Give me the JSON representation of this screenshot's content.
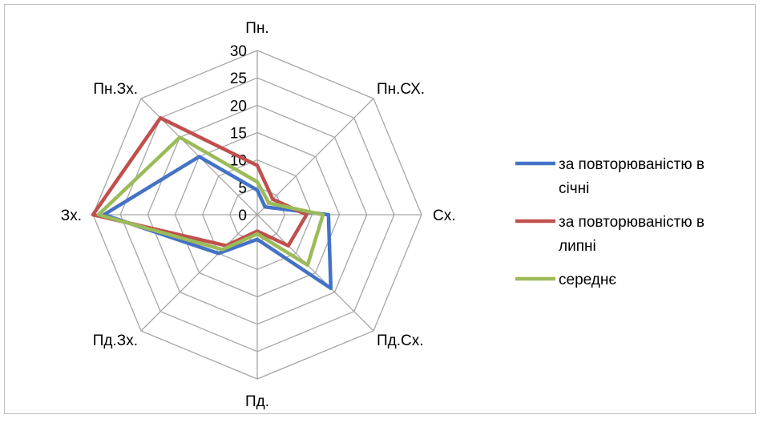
{
  "chart_data": {
    "type": "radar",
    "title": "",
    "categories": [
      "Пн.",
      "Пн.СХ.",
      "Сх.",
      "Пд.Сх.",
      "Пд.",
      "Пд.Зх.",
      "Зх.",
      "Пн.Зх."
    ],
    "r_ticks": [
      "0",
      "5",
      "10",
      "15",
      "20",
      "25",
      "30"
    ],
    "r_range": [
      0,
      30
    ],
    "grid": true,
    "legend_position": "right",
    "series": [
      {
        "name": "за повторюваністю в січні",
        "legend_lines": [
          "за повторюваністю в",
          "січні"
        ],
        "color": "#4472C4",
        "values": [
          4.5,
          2,
          13,
          19,
          4.5,
          10,
          28,
          15
        ]
      },
      {
        "name": "за повторюваністю в липні",
        "legend_lines": [
          "за повторюваністю в",
          "липні"
        ],
        "color": "#C0504D",
        "values": [
          9,
          4,
          9,
          8,
          3,
          8,
          30,
          25
        ]
      },
      {
        "name": "середнє",
        "legend_lines": [
          "середнє"
        ],
        "color": "#9BBB59",
        "values": [
          6,
          3,
          12,
          13,
          3.5,
          9,
          29,
          20
        ]
      }
    ]
  }
}
